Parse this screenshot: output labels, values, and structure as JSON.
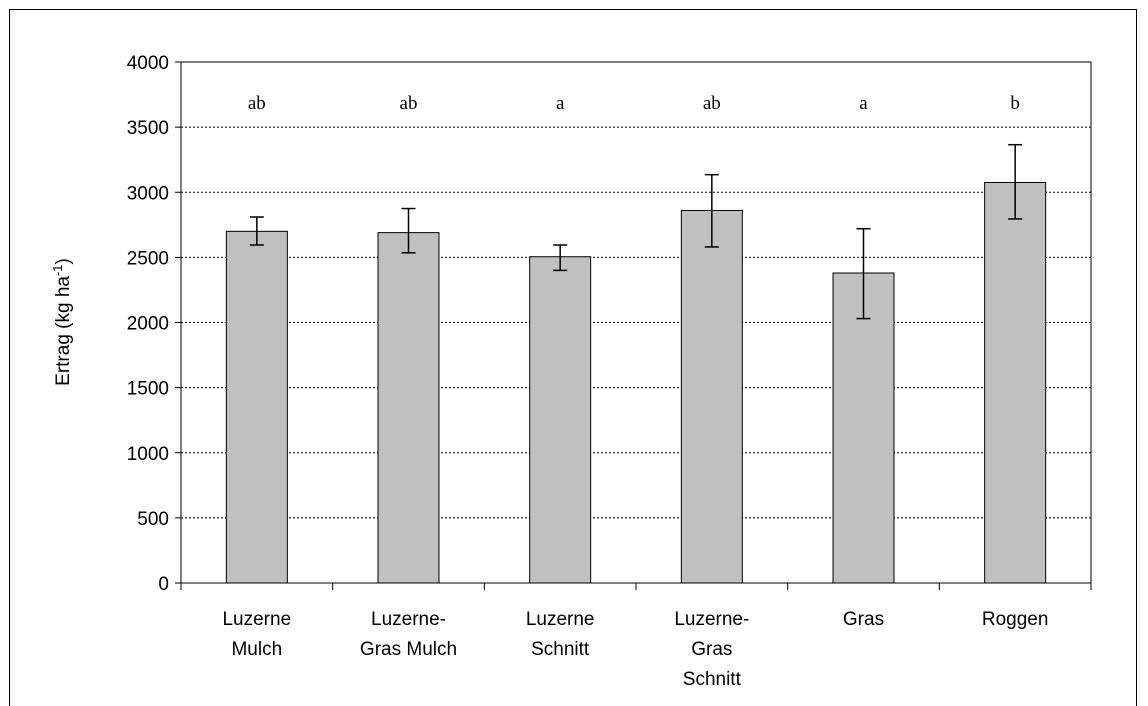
{
  "chart_data": {
    "type": "bar",
    "categories": [
      [
        "Luzerne",
        "Mulch"
      ],
      [
        "Luzerne-",
        "Gras Mulch"
      ],
      [
        "Luzerne",
        "Schnitt"
      ],
      [
        "Luzerne-",
        "Gras",
        "Schnitt"
      ],
      [
        "Gras"
      ],
      [
        "Roggen"
      ]
    ],
    "values": [
      2700,
      2690,
      2505,
      2860,
      2380,
      3075
    ],
    "error": [
      [
        2595,
        2810
      ],
      [
        2535,
        2875
      ],
      [
        2400,
        2595
      ],
      [
        2580,
        3135
      ],
      [
        2030,
        2720
      ],
      [
        2795,
        3365
      ]
    ],
    "significance": [
      "ab",
      "ab",
      "a",
      "ab",
      "a",
      "b"
    ],
    "ylabel": "Ertrag (kg ha",
    "ylabel_superscript": "-1",
    "ylabel_suffix": ")",
    "ylim": [
      0,
      4000
    ],
    "yticks": [
      0,
      500,
      1000,
      1500,
      2000,
      2500,
      3000,
      3500,
      4000
    ],
    "grid": "dotted horizontal",
    "bar_color": "#c0c0c0"
  }
}
